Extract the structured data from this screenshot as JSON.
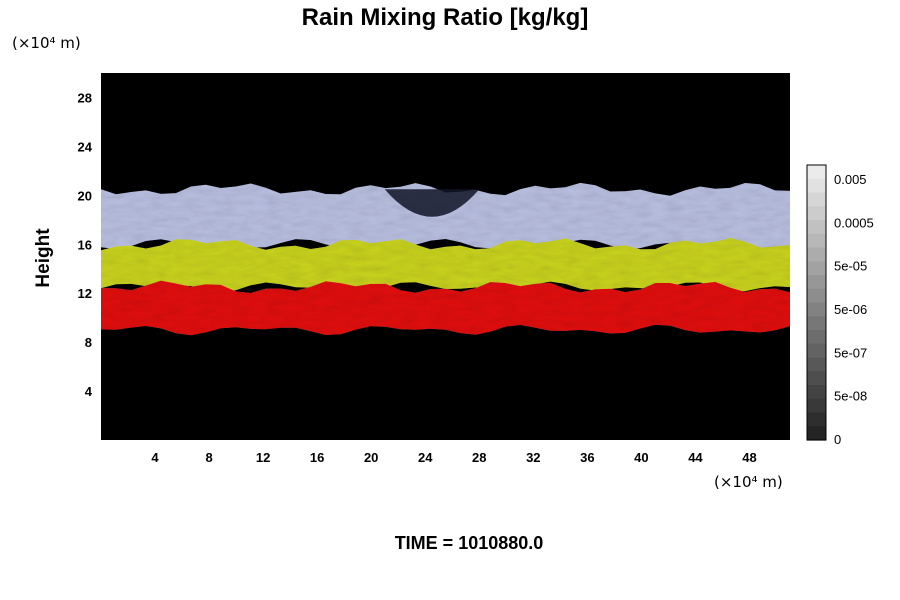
{
  "chart_data": {
    "type": "heatmap",
    "title": "Rain Mixing Ratio [kg/kg]",
    "ylabel": "Height",
    "x_unit": "(×10⁴ m)",
    "y_unit": "(×10⁴ m)",
    "xlim": [
      0,
      51
    ],
    "ylim": [
      0,
      30
    ],
    "x_ticks": [
      "4",
      "8",
      "12",
      "16",
      "20",
      "24",
      "28",
      "32",
      "36",
      "40",
      "44",
      "48"
    ],
    "y_ticks": [
      "4",
      "8",
      "12",
      "16",
      "20",
      "24",
      "28"
    ],
    "colorbar_labels": [
      "0.005",
      "0.0005",
      "5e-05",
      "5e-06",
      "5e-07",
      "5e-08",
      "0"
    ],
    "bands": [
      {
        "name": "",
        "y_bottom": 16.0,
        "y_top": 20.5,
        "color": "#b8bedf"
      },
      {
        "name": "",
        "y_bottom": 12.5,
        "y_top": 16.0,
        "color": "#c8d21e"
      },
      {
        "name": "",
        "y_bottom": 9.0,
        "y_top": 12.5,
        "color": "#e01010"
      }
    ],
    "grid": false,
    "legend": "colorbar-right"
  },
  "footer": {
    "time_label": "TIME = 1010880.0"
  },
  "colors": {
    "background": "#000000",
    "upper": "#b8bedf",
    "middle": "#c8d21e",
    "lower": "#e01010"
  }
}
